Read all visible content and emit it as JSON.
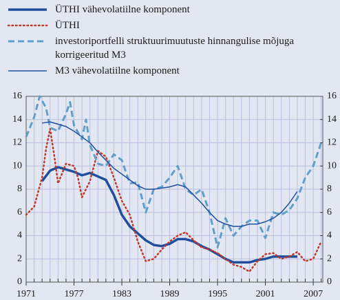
{
  "chart_data": {
    "type": "line",
    "xlim": [
      1971,
      2008.2
    ],
    "xticks": [
      1971,
      1977,
      1983,
      1989,
      1995,
      2001,
      2007
    ],
    "ylim": [
      0,
      16
    ],
    "yticks": [
      0,
      2,
      4,
      6,
      8,
      10,
      12,
      14,
      16
    ],
    "y2lim": [
      0,
      16
    ],
    "y2ticks": [
      0,
      2,
      4,
      6,
      8,
      10,
      12,
      14,
      16
    ],
    "grid": true,
    "legend": "top-left",
    "series": [
      {
        "name": "ÜTHI vähevolatiilne komponent",
        "color": "#1f4e9c",
        "line_style": "solid",
        "line_width": 3.5,
        "x": [
          1973,
          1974,
          1975,
          1976,
          1977,
          1978,
          1979,
          1980,
          1981,
          1982,
          1983,
          1984,
          1985,
          1986,
          1987,
          1988,
          1989,
          1990,
          1991,
          1992,
          1993,
          1994,
          1995,
          1996,
          1997,
          1998,
          1999,
          2000,
          2001,
          2002,
          2003,
          2004,
          2005
        ],
        "values": [
          8.7,
          9.6,
          9.9,
          9.7,
          9.5,
          9.2,
          9.4,
          9.1,
          8.8,
          7.5,
          5.8,
          4.8,
          4.2,
          3.6,
          3.2,
          3.1,
          3.3,
          3.7,
          3.7,
          3.5,
          3.1,
          2.8,
          2.4,
          2.0,
          1.7,
          1.7,
          1.7,
          1.9,
          2.0,
          2.2,
          2.2,
          2.2,
          2.2
        ]
      },
      {
        "name": "ÜTHI",
        "color": "#c0392b",
        "line_style": "dotted",
        "line_width": 2.5,
        "x": [
          1971,
          1972,
          1973,
          1973.5,
          1974,
          1974.5,
          1975,
          1976,
          1977,
          1977.5,
          1978,
          1979,
          1980,
          1981,
          1982,
          1983,
          1984,
          1985,
          1986,
          1987,
          1988,
          1989,
          1990,
          1991,
          1992,
          1993,
          1994,
          1995,
          1996,
          1997,
          1998,
          1999,
          2000,
          2001,
          2002,
          2003,
          2004,
          2005,
          2006,
          2007,
          2008
        ],
        "values": [
          5.8,
          6.5,
          9.0,
          11.5,
          13.2,
          11.0,
          8.5,
          10.2,
          10.0,
          9.0,
          7.3,
          8.7,
          11.3,
          10.8,
          9.0,
          7.0,
          5.8,
          3.5,
          1.8,
          2.0,
          2.8,
          3.5,
          4.0,
          4.3,
          3.6,
          3.0,
          2.8,
          2.5,
          2.0,
          1.5,
          1.3,
          0.9,
          1.8,
          2.4,
          2.5,
          2.0,
          2.2,
          2.6,
          1.8,
          2.0,
          3.5
        ]
      },
      {
        "name": "investoriportfelli struktuurimuutuste hinnangulise mõjuga korrigeeritud M3",
        "color": "#5f9fc8",
        "line_style": "dashed",
        "line_width": 3,
        "x": [
          1971,
          1972,
          1972.7,
          1973.5,
          1974,
          1975,
          1976,
          1976.5,
          1977,
          1978,
          1978.5,
          1979,
          1980,
          1981,
          1982,
          1983,
          1984,
          1985,
          1986,
          1987,
          1988,
          1989,
          1990,
          1991,
          1992,
          1993,
          1994,
          1995,
          1996,
          1997,
          1998,
          1999,
          2000,
          2001,
          2002,
          2003,
          2004,
          2005,
          2006,
          2007,
          2008
        ],
        "values": [
          12.5,
          14.2,
          16.0,
          15.0,
          13.3,
          13.0,
          14.5,
          15.5,
          13.5,
          12.3,
          14.0,
          11.8,
          10.2,
          10.0,
          11.0,
          10.5,
          8.5,
          8.6,
          6.0,
          8.0,
          8.2,
          9.0,
          10.0,
          8.0,
          7.5,
          8.0,
          6.0,
          3.0,
          5.5,
          4.0,
          4.8,
          5.3,
          5.3,
          3.8,
          6.0,
          5.8,
          6.2,
          7.2,
          9.0,
          10.0,
          12.0
        ]
      },
      {
        "name": "M3 vähevolatiilne komponent",
        "color": "#1f4e9c",
        "line_style": "solid",
        "line_width": 1.5,
        "x": [
          1973,
          1974,
          1975,
          1976,
          1977,
          1978,
          1979,
          1980,
          1981,
          1982,
          1983,
          1984,
          1985,
          1986,
          1987,
          1988,
          1989,
          1990,
          1991,
          1992,
          1993,
          1994,
          1995,
          1996,
          1997,
          1998,
          1999,
          2000,
          2001,
          2002,
          2003,
          2004,
          2005
        ],
        "values": [
          13.7,
          13.8,
          13.6,
          13.4,
          13.0,
          12.5,
          12.0,
          11.2,
          10.5,
          9.8,
          9.3,
          8.8,
          8.3,
          8.0,
          8.0,
          8.1,
          8.2,
          8.4,
          8.2,
          7.5,
          6.8,
          6.0,
          5.3,
          5.0,
          4.8,
          4.8,
          5.0,
          5.0,
          5.2,
          5.5,
          6.0,
          6.8,
          7.8
        ]
      }
    ]
  }
}
